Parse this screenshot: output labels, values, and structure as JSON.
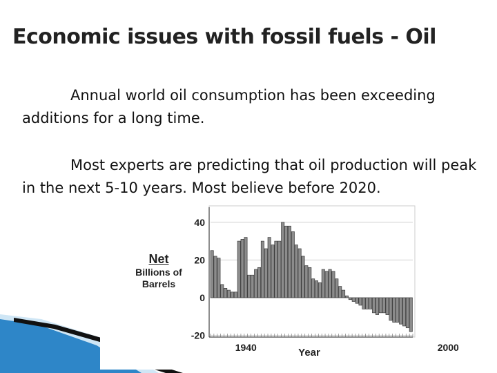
{
  "slide": {
    "title": "Economic issues with fossil fuels - Oil",
    "paragraphs": [
      "Annual world oil consumption has been exceeding additions for a long time.",
      "Most experts are predicting that oil production will peak in the next 5-10 years. Most believe before 2020."
    ]
  },
  "colors": {
    "bar_fill": "#8c8c8c",
    "bar_stroke": "#3a3a3a",
    "accent_blue": "#2e86c8"
  },
  "chart_data": {
    "type": "bar",
    "xlabel": "Year",
    "ylabel": "Net",
    "ylabel_sub": "Billions of Barrels",
    "ylim": [
      -20,
      45
    ],
    "yticks": [
      40,
      20,
      0,
      -20
    ],
    "xticks": [
      1940,
      2000
    ],
    "x": [
      1930,
      1931,
      1932,
      1933,
      1934,
      1935,
      1936,
      1937,
      1938,
      1939,
      1940,
      1941,
      1942,
      1943,
      1944,
      1945,
      1946,
      1947,
      1948,
      1949,
      1950,
      1951,
      1952,
      1953,
      1954,
      1955,
      1956,
      1957,
      1958,
      1959,
      1960,
      1961,
      1962,
      1963,
      1964,
      1965,
      1966,
      1967,
      1968,
      1969,
      1970,
      1971,
      1972,
      1973,
      1974,
      1975,
      1976,
      1977,
      1978,
      1979,
      1980,
      1981,
      1982,
      1983,
      1984,
      1985,
      1986,
      1987,
      1988,
      1989
    ],
    "values": [
      25,
      22,
      21,
      7,
      5,
      4,
      3,
      3,
      30,
      31,
      32,
      12,
      12,
      15,
      16,
      30,
      26,
      32,
      28,
      30,
      30,
      40,
      38,
      38,
      35,
      28,
      26,
      22,
      17,
      16,
      10,
      9,
      8,
      15,
      14,
      15,
      14,
      10,
      6,
      4,
      1,
      -1,
      -2,
      -3,
      -4,
      -6,
      -6,
      -6,
      -8,
      -9,
      -8,
      -8,
      -9,
      -12,
      -13,
      -13,
      -14,
      -15,
      -16,
      -18
    ]
  }
}
